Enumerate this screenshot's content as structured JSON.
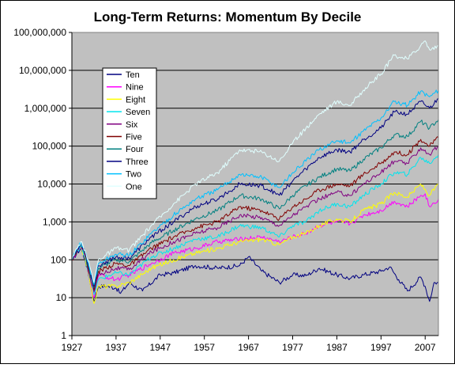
{
  "chart_data": {
    "type": "line",
    "title": "Long-Term Returns: Momentum By Decile",
    "xlabel": "",
    "ylabel": "",
    "y_scale": "log",
    "ylim": [
      1,
      100000000
    ],
    "y_ticks": [
      "1",
      "10",
      "100",
      "1,000",
      "10,000",
      "100,000",
      "1,000,000",
      "10,000,000",
      "100,000,000"
    ],
    "x_ticks": [
      "1927",
      "1937",
      "1947",
      "1957",
      "1967",
      "1977",
      "1987",
      "1997",
      "2007"
    ],
    "xlim": [
      1927,
      2010
    ],
    "grid": true,
    "plot_background": "#c0c0c0",
    "legend_position": "upper-left",
    "series": [
      {
        "name": "Ten",
        "color": "#000080",
        "points": [
          [
            1927,
            100
          ],
          [
            1929,
            200
          ],
          [
            1930,
            100
          ],
          [
            1931,
            30
          ],
          [
            1932,
            8
          ],
          [
            1933,
            20
          ],
          [
            1935,
            20
          ],
          [
            1937,
            18
          ],
          [
            1938,
            13
          ],
          [
            1940,
            25
          ],
          [
            1943,
            15
          ],
          [
            1947,
            40
          ],
          [
            1950,
            45
          ],
          [
            1955,
            70
          ],
          [
            1960,
            60
          ],
          [
            1965,
            70
          ],
          [
            1967,
            120
          ],
          [
            1970,
            50
          ],
          [
            1974,
            25
          ],
          [
            1977,
            40
          ],
          [
            1980,
            38
          ],
          [
            1983,
            60
          ],
          [
            1987,
            40
          ],
          [
            1990,
            32
          ],
          [
            1993,
            40
          ],
          [
            1997,
            50
          ],
          [
            1999,
            65
          ],
          [
            2001,
            30
          ],
          [
            2003,
            15
          ],
          [
            2006,
            35
          ],
          [
            2007,
            20
          ],
          [
            2008,
            8
          ],
          [
            2009,
            25
          ],
          [
            2010,
            25
          ]
        ]
      },
      {
        "name": "Nine",
        "color": "#ff00ff",
        "points": [
          [
            1927,
            100
          ],
          [
            1929,
            210
          ],
          [
            1930,
            110
          ],
          [
            1931,
            30
          ],
          [
            1932,
            10
          ],
          [
            1933,
            40
          ],
          [
            1937,
            30
          ],
          [
            1940,
            40
          ],
          [
            1945,
            80
          ],
          [
            1950,
            150
          ],
          [
            1955,
            200
          ],
          [
            1960,
            300
          ],
          [
            1965,
            350
          ],
          [
            1970,
            400
          ],
          [
            1974,
            300
          ],
          [
            1977,
            400
          ],
          [
            1980,
            500
          ],
          [
            1983,
            800
          ],
          [
            1987,
            1000
          ],
          [
            1990,
            900
          ],
          [
            1993,
            1500
          ],
          [
            1997,
            2000
          ],
          [
            2000,
            3500
          ],
          [
            2003,
            2500
          ],
          [
            2006,
            5000
          ],
          [
            2007,
            5500
          ],
          [
            2008,
            2500
          ],
          [
            2010,
            4000
          ]
        ]
      },
      {
        "name": "Eight",
        "color": "#ffff00",
        "points": [
          [
            1927,
            100
          ],
          [
            1929,
            220
          ],
          [
            1930,
            110
          ],
          [
            1931,
            30
          ],
          [
            1932,
            7
          ],
          [
            1933,
            20
          ],
          [
            1937,
            20
          ],
          [
            1940,
            25
          ],
          [
            1945,
            60
          ],
          [
            1950,
            100
          ],
          [
            1955,
            150
          ],
          [
            1960,
            200
          ],
          [
            1965,
            300
          ],
          [
            1970,
            350
          ],
          [
            1974,
            250
          ],
          [
            1977,
            400
          ],
          [
            1980,
            500
          ],
          [
            1983,
            800
          ],
          [
            1987,
            1200
          ],
          [
            1990,
            1000
          ],
          [
            1993,
            2000
          ],
          [
            1997,
            3000
          ],
          [
            2000,
            6000
          ],
          [
            2003,
            4500
          ],
          [
            2006,
            10000
          ],
          [
            2008,
            5000
          ],
          [
            2010,
            10000
          ]
        ]
      },
      {
        "name": "Seven",
        "color": "#00e5ee",
        "points": [
          [
            1927,
            100
          ],
          [
            1929,
            240
          ],
          [
            1930,
            120
          ],
          [
            1931,
            35
          ],
          [
            1932,
            12
          ],
          [
            1933,
            30
          ],
          [
            1937,
            45
          ],
          [
            1940,
            40
          ],
          [
            1945,
            120
          ],
          [
            1950,
            200
          ],
          [
            1955,
            350
          ],
          [
            1960,
            400
          ],
          [
            1965,
            800
          ],
          [
            1970,
            700
          ],
          [
            1974,
            400
          ],
          [
            1977,
            800
          ],
          [
            1980,
            1000
          ],
          [
            1983,
            2000
          ],
          [
            1987,
            3000
          ],
          [
            1990,
            2500
          ],
          [
            1993,
            5000
          ],
          [
            1997,
            10000
          ],
          [
            2000,
            20000
          ],
          [
            2003,
            18000
          ],
          [
            2006,
            50000
          ],
          [
            2008,
            35000
          ],
          [
            2010,
            60000
          ]
        ]
      },
      {
        "name": "Six",
        "color": "#800080",
        "points": [
          [
            1927,
            100
          ],
          [
            1929,
            250
          ],
          [
            1930,
            130
          ],
          [
            1931,
            40
          ],
          [
            1932,
            14
          ],
          [
            1933,
            40
          ],
          [
            1937,
            60
          ],
          [
            1940,
            55
          ],
          [
            1945,
            160
          ],
          [
            1950,
            300
          ],
          [
            1955,
            500
          ],
          [
            1960,
            700
          ],
          [
            1965,
            1500
          ],
          [
            1970,
            1300
          ],
          [
            1974,
            800
          ],
          [
            1977,
            1500
          ],
          [
            1980,
            2500
          ],
          [
            1983,
            4000
          ],
          [
            1987,
            6000
          ],
          [
            1990,
            5000
          ],
          [
            1993,
            10000
          ],
          [
            1997,
            20000
          ],
          [
            2000,
            40000
          ],
          [
            2003,
            35000
          ],
          [
            2006,
            90000
          ],
          [
            2008,
            60000
          ],
          [
            2010,
            100000
          ]
        ]
      },
      {
        "name": "Five",
        "color": "#800000",
        "points": [
          [
            1927,
            100
          ],
          [
            1929,
            260
          ],
          [
            1930,
            140
          ],
          [
            1931,
            45
          ],
          [
            1932,
            16
          ],
          [
            1933,
            50
          ],
          [
            1937,
            80
          ],
          [
            1940,
            70
          ],
          [
            1945,
            200
          ],
          [
            1950,
            400
          ],
          [
            1955,
            700
          ],
          [
            1960,
            1000
          ],
          [
            1965,
            2500
          ],
          [
            1970,
            2000
          ],
          [
            1974,
            1200
          ],
          [
            1977,
            2500
          ],
          [
            1980,
            4000
          ],
          [
            1983,
            7000
          ],
          [
            1987,
            10000
          ],
          [
            1990,
            9000
          ],
          [
            1993,
            18000
          ],
          [
            1997,
            35000
          ],
          [
            2000,
            70000
          ],
          [
            2003,
            60000
          ],
          [
            2006,
            150000
          ],
          [
            2008,
            100000
          ],
          [
            2010,
            170000
          ]
        ]
      },
      {
        "name": "Four",
        "color": "#008080",
        "points": [
          [
            1927,
            100
          ],
          [
            1929,
            270
          ],
          [
            1930,
            150
          ],
          [
            1931,
            50
          ],
          [
            1932,
            18
          ],
          [
            1933,
            60
          ],
          [
            1937,
            100
          ],
          [
            1940,
            90
          ],
          [
            1945,
            280
          ],
          [
            1950,
            600
          ],
          [
            1955,
            1200
          ],
          [
            1960,
            2000
          ],
          [
            1965,
            5000
          ],
          [
            1970,
            4000
          ],
          [
            1974,
            2200
          ],
          [
            1977,
            5000
          ],
          [
            1980,
            9000
          ],
          [
            1983,
            15000
          ],
          [
            1987,
            25000
          ],
          [
            1990,
            22000
          ],
          [
            1993,
            45000
          ],
          [
            1997,
            90000
          ],
          [
            2000,
            200000
          ],
          [
            2003,
            180000
          ],
          [
            2006,
            450000
          ],
          [
            2008,
            300000
          ],
          [
            2010,
            500000
          ]
        ]
      },
      {
        "name": "Three",
        "color": "#000080",
        "points": [
          [
            1927,
            100
          ],
          [
            1929,
            280
          ],
          [
            1930,
            160
          ],
          [
            1931,
            55
          ],
          [
            1932,
            20
          ],
          [
            1933,
            70
          ],
          [
            1937,
            120
          ],
          [
            1940,
            110
          ],
          [
            1945,
            400
          ],
          [
            1950,
            1000
          ],
          [
            1955,
            2500
          ],
          [
            1960,
            4000
          ],
          [
            1965,
            10000
          ],
          [
            1970,
            9000
          ],
          [
            1974,
            5000
          ],
          [
            1977,
            12000
          ],
          [
            1980,
            25000
          ],
          [
            1983,
            50000
          ],
          [
            1987,
            80000
          ],
          [
            1990,
            70000
          ],
          [
            1993,
            150000
          ],
          [
            1997,
            300000
          ],
          [
            2000,
            800000
          ],
          [
            2003,
            700000
          ],
          [
            2006,
            1500000
          ],
          [
            2008,
            1000000
          ],
          [
            2010,
            1800000
          ]
        ]
      },
      {
        "name": "Two",
        "color": "#00c0ff",
        "points": [
          [
            1927,
            100
          ],
          [
            1929,
            290
          ],
          [
            1930,
            170
          ],
          [
            1931,
            60
          ],
          [
            1932,
            22
          ],
          [
            1933,
            80
          ],
          [
            1937,
            140
          ],
          [
            1940,
            130
          ],
          [
            1945,
            500
          ],
          [
            1950,
            1500
          ],
          [
            1955,
            4000
          ],
          [
            1960,
            7000
          ],
          [
            1965,
            18000
          ],
          [
            1970,
            15000
          ],
          [
            1974,
            8000
          ],
          [
            1977,
            20000
          ],
          [
            1980,
            40000
          ],
          [
            1983,
            80000
          ],
          [
            1987,
            140000
          ],
          [
            1990,
            120000
          ],
          [
            1993,
            250000
          ],
          [
            1997,
            550000
          ],
          [
            2000,
            1500000
          ],
          [
            2003,
            1200000
          ],
          [
            2006,
            2800000
          ],
          [
            2008,
            2000000
          ],
          [
            2010,
            3000000
          ]
        ]
      },
      {
        "name": "One",
        "color": "#e0ffff",
        "points": [
          [
            1927,
            100
          ],
          [
            1929,
            300
          ],
          [
            1930,
            180
          ],
          [
            1931,
            70
          ],
          [
            1932,
            25
          ],
          [
            1933,
            100
          ],
          [
            1937,
            200
          ],
          [
            1940,
            180
          ],
          [
            1945,
            800
          ],
          [
            1950,
            3000
          ],
          [
            1955,
            10000
          ],
          [
            1960,
            20000
          ],
          [
            1965,
            80000
          ],
          [
            1970,
            70000
          ],
          [
            1974,
            40000
          ],
          [
            1977,
            120000
          ],
          [
            1980,
            300000
          ],
          [
            1983,
            700000
          ],
          [
            1987,
            1500000
          ],
          [
            1990,
            1200000
          ],
          [
            1993,
            3000000
          ],
          [
            1997,
            8000000
          ],
          [
            2000,
            25000000
          ],
          [
            2003,
            20000000
          ],
          [
            2006,
            45000000
          ],
          [
            2007,
            60000000
          ],
          [
            2008,
            35000000
          ],
          [
            2010,
            45000000
          ]
        ]
      }
    ]
  }
}
